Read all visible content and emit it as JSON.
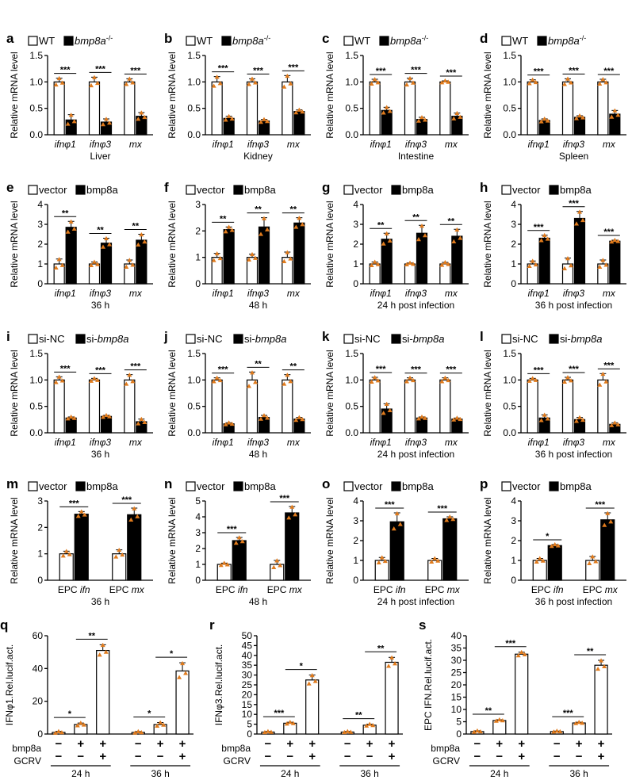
{
  "colors": {
    "bar_open": "#ffffff",
    "bar_filled": "#000000",
    "point": "#e07b1d",
    "axis": "#000000"
  },
  "chart_data": [
    {
      "letter": "a",
      "type": "bar",
      "legend": [
        "WT",
        "bmp8a-/-"
      ],
      "ylabel": "Relative mRNA level",
      "yticks": [
        0.0,
        0.5,
        1.0,
        1.5
      ],
      "ylim": [
        0,
        1.5
      ],
      "categories": [
        "ifnφ1",
        "ifnφ3",
        "mx"
      ],
      "xlabel": "Liver",
      "series": [
        {
          "values": [
            1.0,
            1.0,
            1.0
          ],
          "err": [
            0.07,
            0.09,
            0.06
          ]
        },
        {
          "values": [
            0.28,
            0.24,
            0.35
          ],
          "err": [
            0.1,
            0.06,
            0.07
          ]
        }
      ],
      "significance": [
        "***",
        "***",
        "***"
      ]
    },
    {
      "letter": "b",
      "type": "bar",
      "legend": [
        "WT",
        "bmp8a-/-"
      ],
      "ylabel": "Relative mRNA level",
      "yticks": [
        0.0,
        0.5,
        1.0,
        1.5
      ],
      "ylim": [
        0,
        1.5
      ],
      "categories": [
        "ifnφ1",
        "ifnφ3",
        "mx"
      ],
      "xlabel": "Kidney",
      "series": [
        {
          "values": [
            1.0,
            1.0,
            1.0
          ],
          "err": [
            0.1,
            0.06,
            0.12
          ]
        },
        {
          "values": [
            0.31,
            0.26,
            0.44
          ],
          "err": [
            0.04,
            0.03,
            0.03
          ]
        }
      ],
      "significance": [
        "***",
        "***",
        "***"
      ]
    },
    {
      "letter": "c",
      "type": "bar",
      "legend": [
        "WT",
        "bmp8a-/-"
      ],
      "ylabel": "Relative mRNA level",
      "yticks": [
        0.0,
        0.5,
        1.0,
        1.5
      ],
      "ylim": [
        0,
        1.5
      ],
      "categories": [
        "ifnφ1",
        "ifnφ3",
        "mx"
      ],
      "xlabel": "Intestine",
      "series": [
        {
          "values": [
            1.0,
            1.0,
            1.0
          ],
          "err": [
            0.05,
            0.07,
            0.02
          ]
        },
        {
          "values": [
            0.46,
            0.29,
            0.35
          ],
          "err": [
            0.06,
            0.04,
            0.06
          ]
        }
      ],
      "significance": [
        "***",
        "***",
        "***"
      ]
    },
    {
      "letter": "d",
      "type": "bar",
      "legend": [
        "WT",
        "bmp8a-/-"
      ],
      "ylabel": "Relative mRNA level",
      "yticks": [
        0.0,
        0.5,
        1.0,
        1.5
      ],
      "ylim": [
        0,
        1.5
      ],
      "categories": [
        "ifnφ1",
        "ifnφ3",
        "mx"
      ],
      "xlabel": "Spleen",
      "series": [
        {
          "values": [
            1.0,
            1.0,
            1.0
          ],
          "err": [
            0.04,
            0.06,
            0.05
          ]
        },
        {
          "values": [
            0.27,
            0.33,
            0.39
          ],
          "err": [
            0.03,
            0.03,
            0.07
          ]
        }
      ],
      "significance": [
        "***",
        "***",
        "***"
      ]
    },
    {
      "letter": "e",
      "type": "bar",
      "legend": [
        "vector",
        "bmp8a"
      ],
      "ylabel": "Relative mRNA level",
      "yticks": [
        0,
        1,
        2,
        3,
        4
      ],
      "ylim": [
        0,
        4
      ],
      "categories": [
        "ifnφ1",
        "ifnφ3",
        "mx"
      ],
      "xlabel": "36 h",
      "series": [
        {
          "values": [
            1.0,
            1.0,
            1.0
          ],
          "err": [
            0.25,
            0.1,
            0.2
          ]
        },
        {
          "values": [
            2.85,
            2.05,
            2.2
          ],
          "err": [
            0.3,
            0.25,
            0.3
          ]
        }
      ],
      "significance": [
        "**",
        "**",
        "**"
      ]
    },
    {
      "letter": "f",
      "type": "bar",
      "legend": [
        "vector",
        "bmp8a"
      ],
      "ylabel": "Relative mRNA level",
      "yticks": [
        0,
        1,
        2,
        3
      ],
      "ylim": [
        0,
        3
      ],
      "categories": [
        "ifnφ1",
        "ifnφ3",
        "mx"
      ],
      "xlabel": "48 h",
      "series": [
        {
          "values": [
            1.0,
            1.0,
            1.0
          ],
          "err": [
            0.15,
            0.12,
            0.2
          ]
        },
        {
          "values": [
            2.05,
            2.15,
            2.3
          ],
          "err": [
            0.1,
            0.35,
            0.2
          ]
        }
      ],
      "significance": [
        "**",
        "**",
        "**"
      ]
    },
    {
      "letter": "g",
      "type": "bar",
      "legend": [
        "vector",
        "bmp8a"
      ],
      "ylabel": "Relative mRNA level",
      "yticks": [
        0,
        1,
        2,
        3,
        4
      ],
      "ylim": [
        0,
        4
      ],
      "categories": [
        "ifnφ1",
        "ifnφ3",
        "mx"
      ],
      "xlabel": "24 h post infection",
      "series": [
        {
          "values": [
            1.0,
            1.0,
            1.0
          ],
          "err": [
            0.1,
            0.05,
            0.08
          ]
        },
        {
          "values": [
            2.25,
            2.55,
            2.4
          ],
          "err": [
            0.3,
            0.4,
            0.35
          ]
        }
      ],
      "significance": [
        "**",
        "**",
        "**"
      ]
    },
    {
      "letter": "h",
      "type": "bar",
      "legend": [
        "vector",
        "bmp8a"
      ],
      "ylabel": "Relative mRNA level",
      "yticks": [
        0,
        1,
        2,
        3,
        4
      ],
      "ylim": [
        0,
        4
      ],
      "categories": [
        "ifnφ1",
        "ifnφ3",
        "mx"
      ],
      "xlabel": "36 h post infection",
      "series": [
        {
          "values": [
            1.0,
            1.0,
            1.0
          ],
          "err": [
            0.15,
            0.3,
            0.2
          ]
        },
        {
          "values": [
            2.3,
            3.3,
            2.15
          ],
          "err": [
            0.15,
            0.35,
            0.05
          ]
        }
      ],
      "significance": [
        "***",
        "***",
        "***"
      ]
    },
    {
      "letter": "i",
      "type": "bar",
      "legend": [
        "si-NC",
        "si-bmp8a"
      ],
      "ylabel": "Relative mRNA level",
      "yticks": [
        0.0,
        0.5,
        1.0,
        1.5
      ],
      "ylim": [
        0,
        1.5
      ],
      "categories": [
        "ifnφ1",
        "ifnφ3",
        "mx"
      ],
      "xlabel": "36 h",
      "series": [
        {
          "values": [
            1.0,
            1.0,
            1.0
          ],
          "err": [
            0.06,
            0.03,
            0.1
          ]
        },
        {
          "values": [
            0.28,
            0.31,
            0.21
          ],
          "err": [
            0.02,
            0.02,
            0.05
          ]
        }
      ],
      "significance": [
        "***",
        "***",
        "***"
      ]
    },
    {
      "letter": "j",
      "type": "bar",
      "legend": [
        "si-NC",
        "si-bmp8a"
      ],
      "ylabel": "Relative mRNA level",
      "yticks": [
        0.0,
        0.5,
        1.0,
        1.5
      ],
      "ylim": [
        0,
        1.5
      ],
      "categories": [
        "ifnφ1",
        "ifnφ3",
        "mx"
      ],
      "xlabel": "48 h",
      "series": [
        {
          "values": [
            1.0,
            1.0,
            1.0
          ],
          "err": [
            0.04,
            0.15,
            0.1
          ]
        },
        {
          "values": [
            0.17,
            0.29,
            0.26
          ],
          "err": [
            0.02,
            0.04,
            0.03
          ]
        }
      ],
      "significance": [
        "***",
        "**",
        "**"
      ]
    },
    {
      "letter": "k",
      "type": "bar",
      "legend": [
        "si-NC",
        "si-bmp8a"
      ],
      "ylabel": "Relative mRNA level",
      "yticks": [
        0.0,
        0.5,
        1.0,
        1.5
      ],
      "ylim": [
        0,
        1.5
      ],
      "categories": [
        "ifnφ1",
        "ifnφ3",
        "mx"
      ],
      "xlabel": "24 h post infection",
      "series": [
        {
          "values": [
            1.0,
            1.0,
            1.0
          ],
          "err": [
            0.05,
            0.04,
            0.04
          ]
        },
        {
          "values": [
            0.45,
            0.28,
            0.26
          ],
          "err": [
            0.1,
            0.02,
            0.02
          ]
        }
      ],
      "significance": [
        "***",
        "***",
        "***"
      ]
    },
    {
      "letter": "l",
      "type": "bar",
      "legend": [
        "si-NC",
        "si-bmp8a"
      ],
      "ylabel": "Relative mRNA level",
      "yticks": [
        0.0,
        0.5,
        1.0,
        1.5
      ],
      "ylim": [
        0,
        1.5
      ],
      "categories": [
        "ifnφ1",
        "ifnφ3",
        "mx"
      ],
      "xlabel": "36 h post infection",
      "series": [
        {
          "values": [
            1.0,
            1.0,
            1.0
          ],
          "err": [
            0.03,
            0.05,
            0.12
          ]
        },
        {
          "values": [
            0.28,
            0.25,
            0.16
          ],
          "err": [
            0.06,
            0.04,
            0.03
          ]
        }
      ],
      "significance": [
        "***",
        "***",
        "***"
      ]
    },
    {
      "letter": "m",
      "type": "bar",
      "legend": [
        "vector",
        "bmp8a"
      ],
      "ylabel": "Relative mRNA level",
      "yticks": [
        0,
        1,
        2,
        3
      ],
      "ylim": [
        0,
        3
      ],
      "categories": [
        "EPC ifn",
        "EPC mx"
      ],
      "xlabel": "36 h",
      "series": [
        {
          "values": [
            1.0,
            1.0
          ],
          "err": [
            0.1,
            0.15
          ]
        },
        {
          "values": [
            2.5,
            2.48
          ],
          "err": [
            0.1,
            0.25
          ]
        }
      ],
      "significance": [
        "***",
        "***"
      ]
    },
    {
      "letter": "n",
      "type": "bar",
      "legend": [
        "vector",
        "bmp8a"
      ],
      "ylabel": "Relative mRNA level",
      "yticks": [
        0,
        1,
        2,
        3,
        4,
        5
      ],
      "ylim": [
        0,
        5
      ],
      "categories": [
        "EPC ifn",
        "EPC mx"
      ],
      "xlabel": "48 h",
      "series": [
        {
          "values": [
            1.0,
            1.0
          ],
          "err": [
            0.08,
            0.25
          ]
        },
        {
          "values": [
            2.5,
            4.25
          ],
          "err": [
            0.2,
            0.4
          ]
        }
      ],
      "significance": [
        "***",
        "***"
      ]
    },
    {
      "letter": "o",
      "type": "bar",
      "legend": [
        "vector",
        "bmp8a"
      ],
      "ylabel": "Relative mRNA level",
      "yticks": [
        0,
        1,
        2,
        3,
        4
      ],
      "ylim": [
        0,
        4
      ],
      "categories": [
        "EPC ifn",
        "EPC mx"
      ],
      "xlabel": "24 h post infection",
      "series": [
        {
          "values": [
            1.0,
            1.0
          ],
          "err": [
            0.15,
            0.1
          ]
        },
        {
          "values": [
            2.95,
            3.1
          ],
          "err": [
            0.45,
            0.1
          ]
        }
      ],
      "significance": [
        "***",
        "***"
      ]
    },
    {
      "letter": "p",
      "type": "bar",
      "legend": [
        "vector",
        "bmp8a"
      ],
      "ylabel": "Relative mRNA level",
      "yticks": [
        0,
        1,
        2,
        3,
        4
      ],
      "ylim": [
        0,
        4
      ],
      "categories": [
        "EPC ifn",
        "EPC mx"
      ],
      "xlabel": "36 h post infection",
      "series": [
        {
          "values": [
            1.0,
            1.0
          ],
          "err": [
            0.1,
            0.2
          ]
        },
        {
          "values": [
            1.75,
            3.05
          ],
          "err": [
            0.05,
            0.35
          ]
        }
      ],
      "significance": [
        "*",
        "***"
      ]
    },
    {
      "letter": "q",
      "type": "bar",
      "ylabel": "IFNφ1.Rel.lucif.act.",
      "yticks": [
        0,
        20,
        40,
        60
      ],
      "ylim": [
        0,
        60
      ],
      "values": [
        1.0,
        5.8,
        51,
        1.0,
        5.8,
        38.5
      ],
      "err": [
        0.6,
        0.9,
        3.5,
        0.5,
        1.2,
        5
      ],
      "row_labels": [
        "bmp8a",
        "GCRV"
      ],
      "bmp8a": [
        "−",
        "+",
        "+",
        "−",
        "+",
        "+"
      ],
      "GCRV": [
        "−",
        "−",
        "+",
        "−",
        "−",
        "+"
      ],
      "groups": [
        "24 h",
        "36 h"
      ],
      "comparisons": [
        {
          "a": 0,
          "b": 1,
          "label": "*"
        },
        {
          "a": 1,
          "b": 2,
          "label": "**"
        },
        {
          "a": 3,
          "b": 4,
          "label": "*"
        },
        {
          "a": 4,
          "b": 5,
          "label": "*"
        }
      ]
    },
    {
      "letter": "r",
      "type": "bar",
      "ylabel": "IFNφ3.Rel.lucif.act.",
      "yticks": [
        0,
        5,
        10,
        15,
        20,
        25,
        30,
        35,
        40,
        45,
        50
      ],
      "ylim": [
        0,
        50
      ],
      "values": [
        1.0,
        5.5,
        27.5,
        1.0,
        4.5,
        36.5
      ],
      "err": [
        0.3,
        0.5,
        2.5,
        0.3,
        0.5,
        2.5
      ],
      "row_labels": [
        "bmp8a",
        "GCRV"
      ],
      "bmp8a": [
        "−",
        "+",
        "+",
        "−",
        "+",
        "+"
      ],
      "GCRV": [
        "−",
        "−",
        "+",
        "−",
        "−",
        "+"
      ],
      "groups": [
        "24 h",
        "36 h"
      ],
      "comparisons": [
        {
          "a": 0,
          "b": 1,
          "label": "***"
        },
        {
          "a": 1,
          "b": 2,
          "label": "*"
        },
        {
          "a": 3,
          "b": 4,
          "label": "**"
        },
        {
          "a": 4,
          "b": 5,
          "label": "**"
        }
      ]
    },
    {
      "letter": "s",
      "type": "bar",
      "ylabel": "EPC IFN.Rel.lucif.act.",
      "yticks": [
        0,
        5,
        10,
        15,
        20,
        25,
        30,
        35,
        40
      ],
      "ylim": [
        0,
        40
      ],
      "values": [
        1.0,
        5.5,
        32.5,
        1.0,
        4.5,
        28
      ],
      "err": [
        0.3,
        0.3,
        0.8,
        0.2,
        0.3,
        2
      ],
      "row_labels": [
        "bmp8a",
        "GCRV"
      ],
      "bmp8a": [
        "−",
        "+",
        "+",
        "−",
        "+",
        "+"
      ],
      "GCRV": [
        "−",
        "−",
        "+",
        "−",
        "−",
        "+"
      ],
      "groups": [
        "24 h",
        "36 h"
      ],
      "comparisons": [
        {
          "a": 0,
          "b": 1,
          "label": "**"
        },
        {
          "a": 1,
          "b": 2,
          "label": "***"
        },
        {
          "a": 3,
          "b": 4,
          "label": "***"
        },
        {
          "a": 4,
          "b": 5,
          "label": "**"
        }
      ]
    }
  ]
}
